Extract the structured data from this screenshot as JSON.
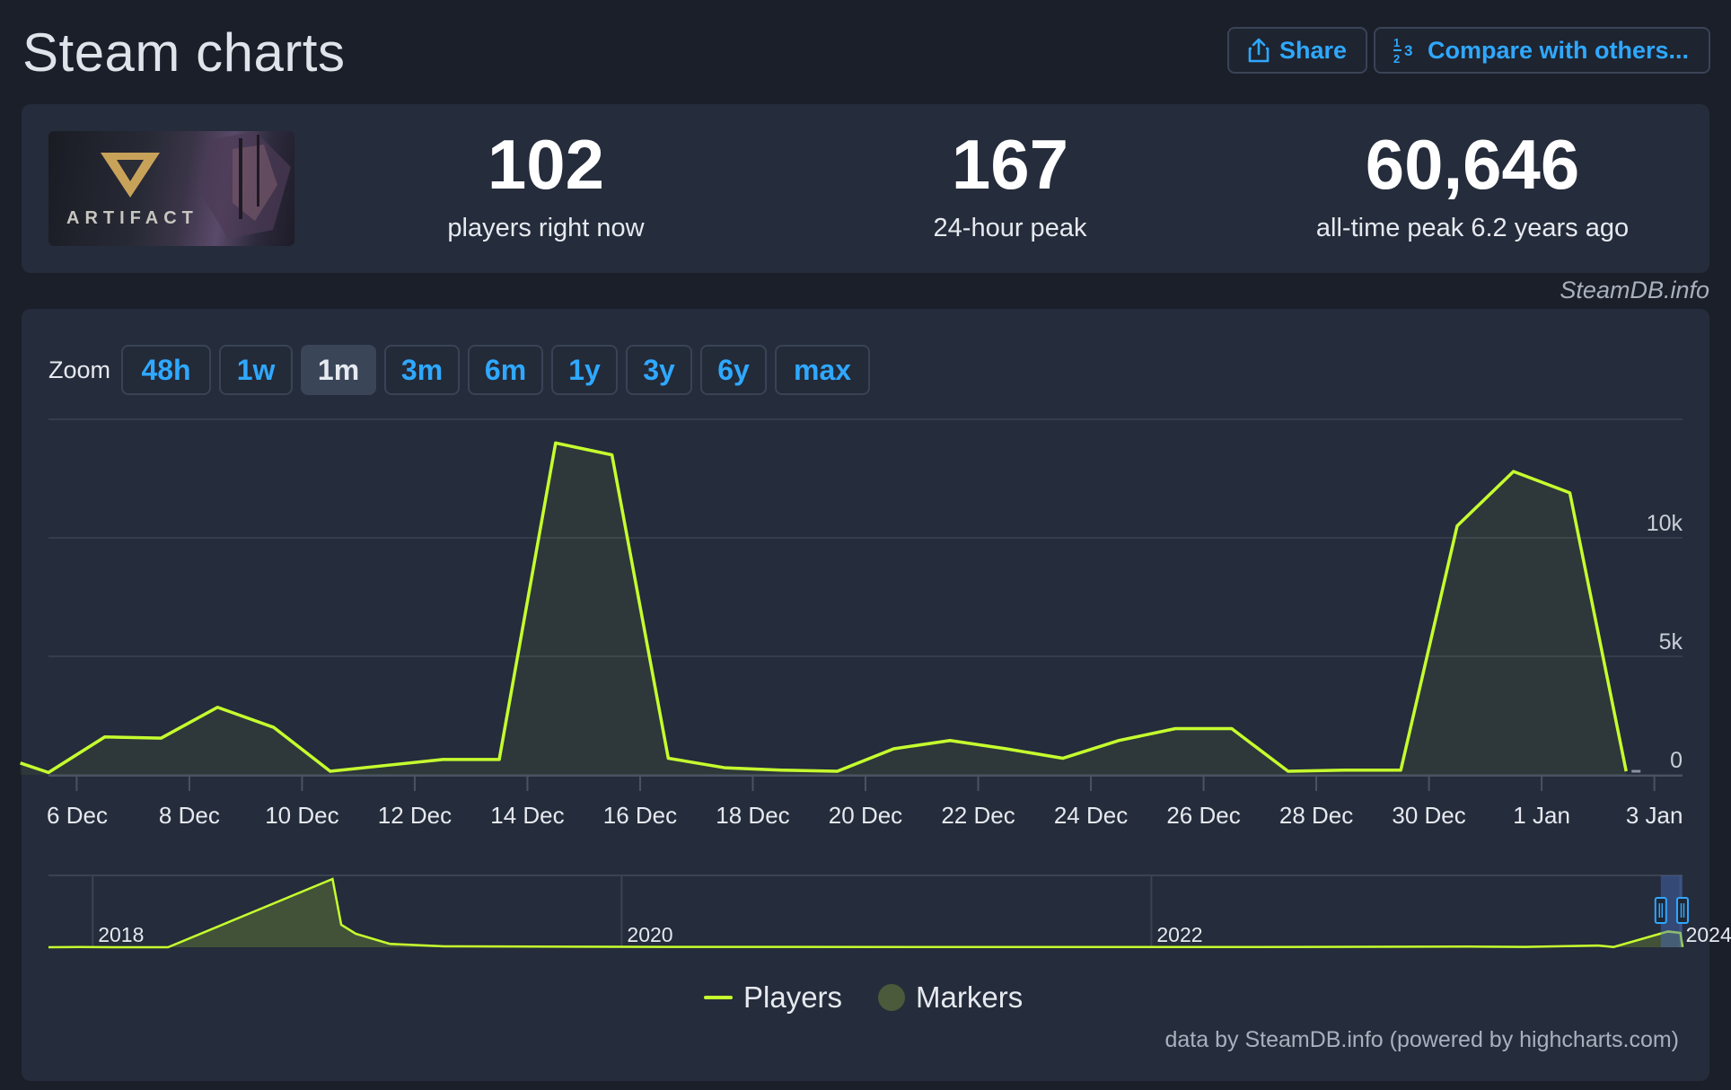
{
  "header": {
    "title": "Steam charts",
    "share_label": "Share",
    "compare_label": "Compare with others..."
  },
  "game": {
    "name_on_cover": "ARTIFACT"
  },
  "stats": [
    {
      "value": "102",
      "label": "players right now"
    },
    {
      "value": "167",
      "label": "24-hour peak"
    },
    {
      "value": "60,646",
      "label": "all-time peak 6.2 years ago"
    }
  ],
  "credit_top": "SteamDB.info",
  "zoom": {
    "label": "Zoom",
    "options": [
      "48h",
      "1w",
      "1m",
      "3m",
      "6m",
      "1y",
      "3y",
      "6y",
      "max"
    ],
    "active": "1m"
  },
  "legend": {
    "players": "Players",
    "markers": "Markers"
  },
  "credit_bottom": "data by SteamDB.info (powered by highcharts.com)",
  "colors": {
    "line": "#c6ff2e",
    "accent": "#2fa8ff",
    "background": "#1b1f2a",
    "card": "#252c3b"
  },
  "chart_data": {
    "type": "line",
    "series": [
      {
        "name": "Players",
        "points": [
          [
            "2023-12-05",
            500
          ],
          [
            "2023-12-05T12:00",
            100
          ],
          [
            "2023-12-06T12:00",
            1600
          ],
          [
            "2023-12-07T12:00",
            1550
          ],
          [
            "2023-12-08T12:00",
            2850
          ],
          [
            "2023-12-09T12:00",
            2000
          ],
          [
            "2023-12-10T12:00",
            150
          ],
          [
            "2023-12-11T12:00",
            400
          ],
          [
            "2023-12-12T12:00",
            650
          ],
          [
            "2023-12-13T12:00",
            650
          ],
          [
            "2023-12-14T12:00",
            14000
          ],
          [
            "2023-12-15T12:00",
            13500
          ],
          [
            "2023-12-16T12:00",
            700
          ],
          [
            "2023-12-17T12:00",
            300
          ],
          [
            "2023-12-18T12:00",
            200
          ],
          [
            "2023-12-19T12:00",
            150
          ],
          [
            "2023-12-20T12:00",
            1100
          ],
          [
            "2023-12-21T12:00",
            1450
          ],
          [
            "2023-12-22T12:00",
            1100
          ],
          [
            "2023-12-23T12:00",
            700
          ],
          [
            "2023-12-24T12:00",
            1450
          ],
          [
            "2023-12-25T12:00",
            1950
          ],
          [
            "2023-12-26T12:00",
            1950
          ],
          [
            "2023-12-27T12:00",
            150
          ],
          [
            "2023-12-28T12:00",
            200
          ],
          [
            "2023-12-29T12:00",
            200
          ],
          [
            "2023-12-30T12:00",
            10500
          ],
          [
            "2023-12-31T12:00",
            12800
          ],
          [
            "2024-01-01T12:00",
            11900
          ],
          [
            "2024-01-02T12:00",
            150
          ]
        ]
      }
    ],
    "x_ticks": [
      "6 Dec",
      "8 Dec",
      "10 Dec",
      "12 Dec",
      "14 Dec",
      "16 Dec",
      "18 Dec",
      "20 Dec",
      "22 Dec",
      "24 Dec",
      "26 Dec",
      "28 Dec",
      "30 Dec",
      "1 Jan",
      "3 Jan"
    ],
    "x_tick_dates": [
      "2023-12-06",
      "2023-12-08",
      "2023-12-10",
      "2023-12-12",
      "2023-12-14",
      "2023-12-16",
      "2023-12-18",
      "2023-12-20",
      "2023-12-22",
      "2023-12-24",
      "2023-12-26",
      "2023-12-28",
      "2023-12-30",
      "2024-01-01",
      "2024-01-03"
    ],
    "x_range": [
      "2023-12-05T12:00",
      "2024-01-03T12:00"
    ],
    "y_ticks": [
      {
        "value": 0,
        "label": "0"
      },
      {
        "value": 5000,
        "label": "5k"
      },
      {
        "value": 10000,
        "label": "10k"
      },
      {
        "value": 15000,
        "label": ""
      }
    ],
    "ylim": [
      0,
      15000
    ],
    "grid": true,
    "navigator": {
      "years": [
        "2018",
        "2020",
        "2022",
        "2024"
      ],
      "year_dates": [
        "2018-01-01",
        "2020-01-01",
        "2022-01-01",
        "2024-01-01"
      ],
      "range": [
        "2017-11-01",
        "2024-01-04"
      ],
      "selected_range": [
        "2023-12-05",
        "2024-01-04"
      ],
      "ylim": [
        0,
        60646
      ],
      "points": [
        [
          "2017-11-01",
          0
        ],
        [
          "2017-12-15",
          200
        ],
        [
          "2018-02-10",
          0
        ],
        [
          "2018-04-15",
          0
        ],
        [
          "2018-11-28",
          60646
        ],
        [
          "2018-12-10",
          20000
        ],
        [
          "2018-12-30",
          12000
        ],
        [
          "2019-02-15",
          3000
        ],
        [
          "2019-05-01",
          800
        ],
        [
          "2020-03-01",
          300
        ],
        [
          "2021-06-01",
          200
        ],
        [
          "2022-06-01",
          150
        ],
        [
          "2023-03-15",
          600
        ],
        [
          "2023-06-01",
          250
        ],
        [
          "2023-09-10",
          1500
        ],
        [
          "2023-10-01",
          250
        ],
        [
          "2023-12-15",
          14000
        ],
        [
          "2024-01-01",
          12800
        ],
        [
          "2024-01-04",
          150
        ]
      ]
    }
  }
}
